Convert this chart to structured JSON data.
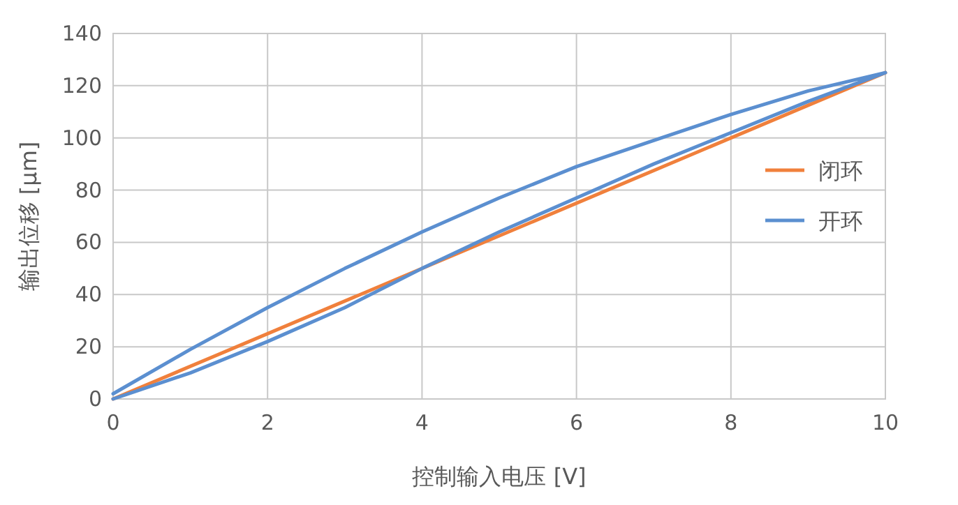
{
  "chart_data": {
    "type": "line",
    "xlabel": "控制输入电压 [V]",
    "ylabel": "输出位移 [μm]",
    "xlim": [
      0,
      10
    ],
    "ylim": [
      0,
      140
    ],
    "xticks": [
      0,
      2,
      4,
      6,
      8,
      10
    ],
    "yticks": [
      0,
      20,
      40,
      60,
      80,
      100,
      120,
      140
    ],
    "grid": true,
    "legend": "right",
    "line_style": "solid",
    "marker": "none",
    "series": [
      {
        "name": "闭环",
        "color": "#f0803c",
        "x": [
          0,
          10
        ],
        "values": [
          0,
          125
        ]
      },
      {
        "name": "开环",
        "color": "#5b8fd0",
        "x": [
          0,
          1,
          2,
          3,
          4,
          5,
          6,
          7,
          8,
          9,
          10,
          9,
          8,
          7,
          6,
          5,
          4,
          3,
          2,
          1,
          0
        ],
        "values": [
          0,
          10,
          22,
          35,
          50,
          64,
          77,
          90,
          102,
          114,
          125,
          118,
          109,
          99,
          89,
          77,
          64,
          50,
          35,
          19,
          2
        ]
      }
    ]
  }
}
